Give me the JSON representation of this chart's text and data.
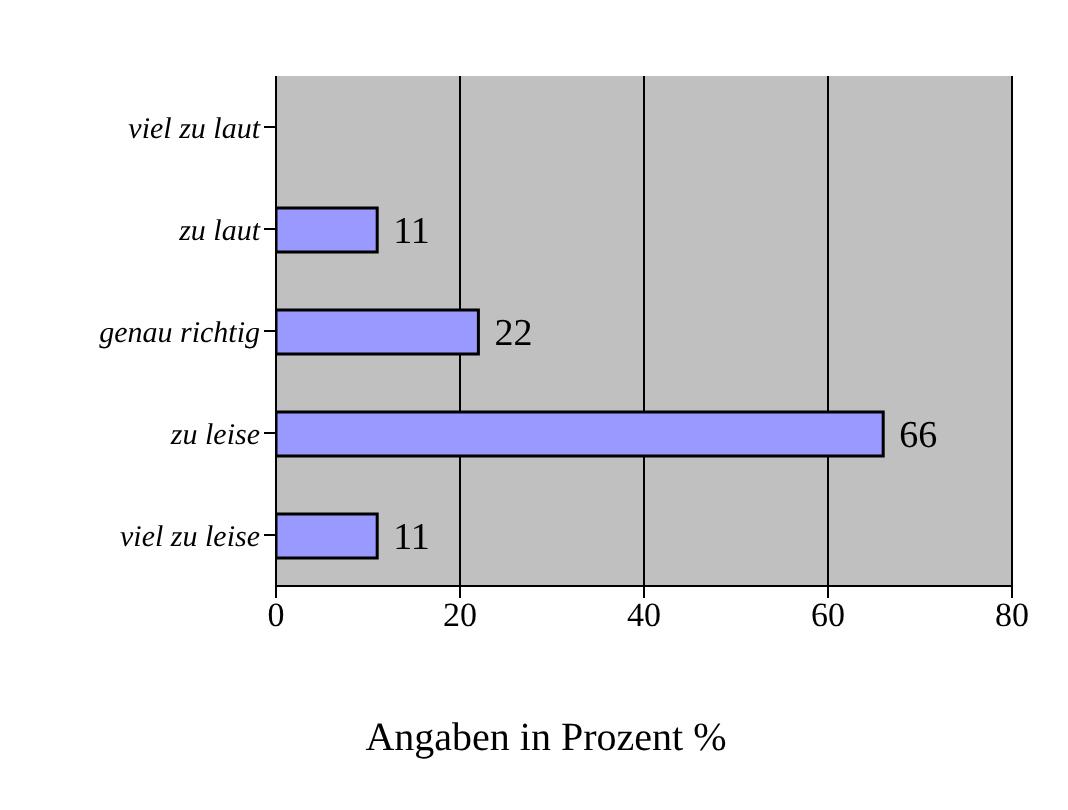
{
  "chart_data": {
    "type": "bar",
    "orientation": "horizontal",
    "xlabel": "Angaben in Prozent %",
    "categories": [
      "viel zu laut",
      "zu laut",
      "genau richtig",
      "zu leise",
      "viel zu leise"
    ],
    "values": [
      null,
      11,
      22,
      66,
      11
    ],
    "color": "#9999ff",
    "xlim": [
      0,
      80
    ],
    "xticks": [
      0,
      20,
      40,
      60,
      80
    ],
    "grid": "x",
    "data_labels": true
  }
}
